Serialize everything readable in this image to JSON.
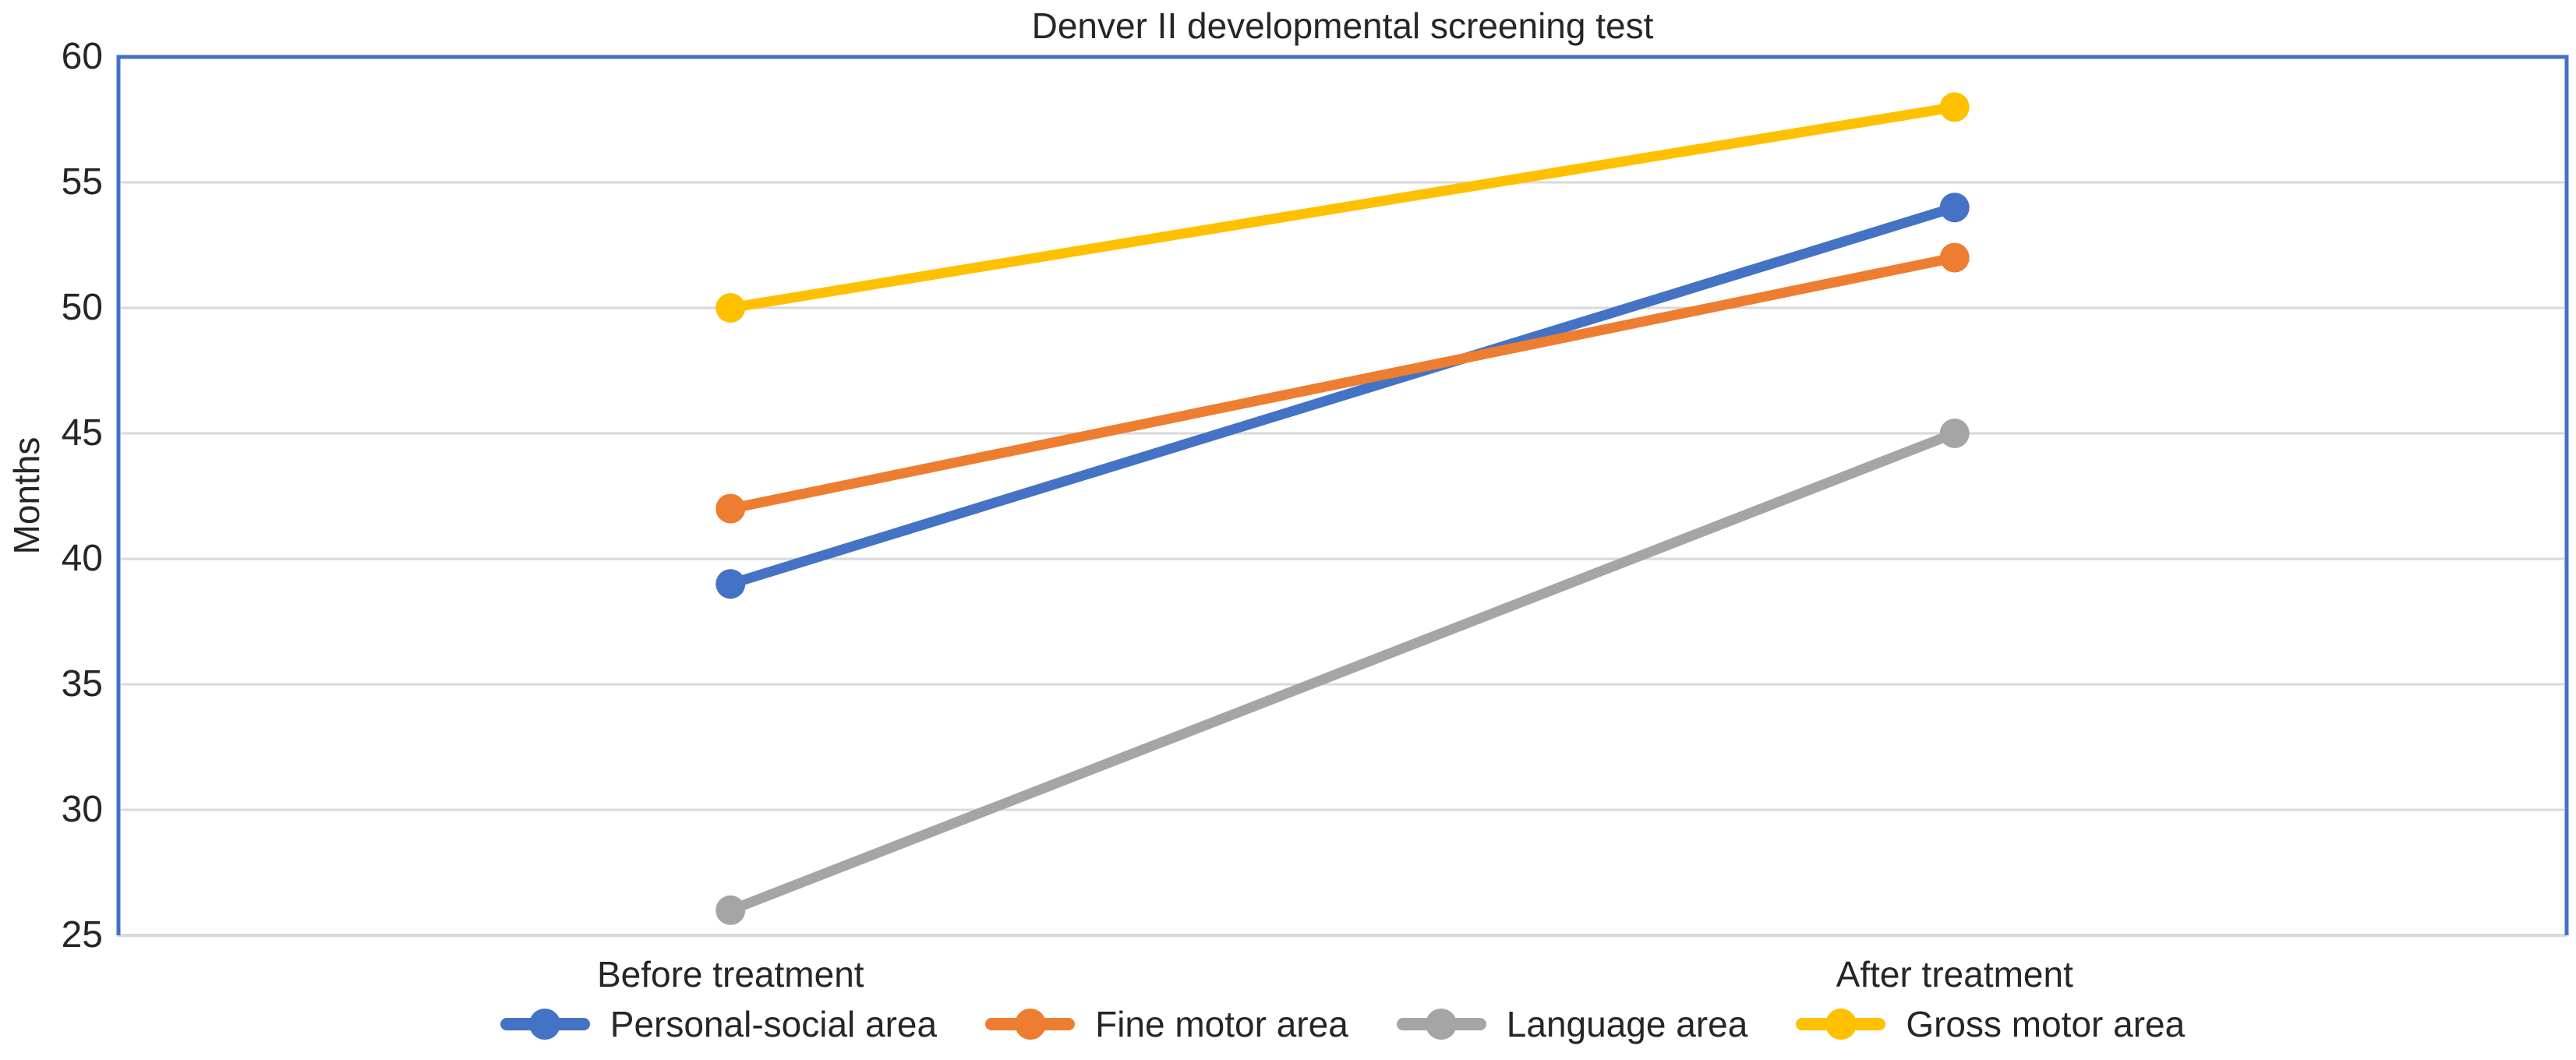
{
  "chart_data": {
    "type": "line",
    "title": "Denver II developmental screening test",
    "xlabel": "",
    "ylabel": "Months",
    "categories": [
      "Before treatment",
      "After treatment"
    ],
    "series": [
      {
        "name": "Personal-social area",
        "values": [
          39,
          54
        ],
        "color": "#4472C4"
      },
      {
        "name": "Fine motor area",
        "values": [
          42,
          52
        ],
        "color": "#ED7D31"
      },
      {
        "name": "Language area",
        "values": [
          26,
          45
        ],
        "color": "#A5A5A5"
      },
      {
        "name": "Gross motor area",
        "values": [
          50,
          58
        ],
        "color": "#FFC000"
      }
    ],
    "ylim": [
      25,
      60
    ],
    "ytick_step": 5,
    "ytick_labels": [
      "25",
      "30",
      "35",
      "40",
      "45",
      "50",
      "55",
      "60"
    ],
    "grid": true,
    "legend_position": "bottom",
    "colors": {
      "plot_border": "#4472C4",
      "gridline": "#D9D9D9",
      "axis_line": "#D9D9D9",
      "text": "#262626",
      "background": "#FFFFFF"
    }
  }
}
